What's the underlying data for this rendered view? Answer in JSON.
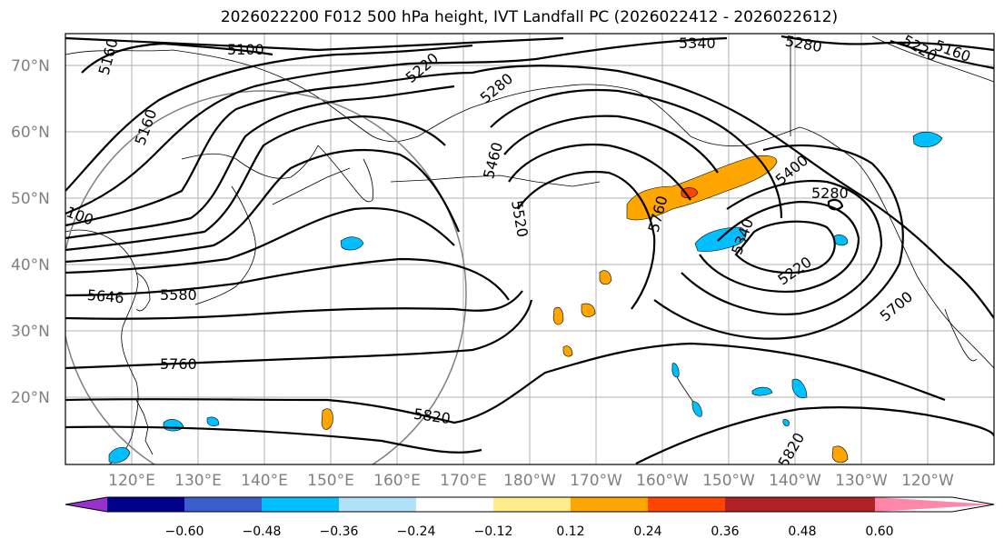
{
  "title": "2026022200 F012 500 hPa height, IVT Landfall PC (2026022412 - 2026022612)",
  "map": {
    "lat_labels": [
      "70°N",
      "60°N",
      "50°N",
      "40°N",
      "30°N",
      "20°N"
    ],
    "lon_labels": [
      "120°E",
      "130°E",
      "140°E",
      "150°E",
      "160°E",
      "170°E",
      "180°W",
      "170°W",
      "160°W",
      "150°W",
      "140°W",
      "130°W",
      "120°W"
    ],
    "contour_labels": [
      "5100",
      "5160",
      "5220",
      "5280",
      "5340",
      "5280",
      "5160",
      "5220",
      "5160",
      "5460",
      "5520",
      "5760",
      "5400",
      "5280",
      "5340",
      "5220",
      "5700",
      "5646",
      "5580",
      "5760",
      "5820",
      "5820",
      "100"
    ]
  },
  "colorbar": {
    "ticks": [
      "−0.60",
      "−0.48",
      "−0.36",
      "−0.24",
      "−0.12",
      "0.12",
      "0.24",
      "0.36",
      "0.48",
      "0.60"
    ],
    "colors": [
      "#9932cc",
      "#00008b",
      "#3a5fcd",
      "#00bfff",
      "#b2e2fa",
      "#ffffff",
      "#ffec8b",
      "#ffa500",
      "#ff4500",
      "#b22222",
      "#ff88aa"
    ]
  }
}
